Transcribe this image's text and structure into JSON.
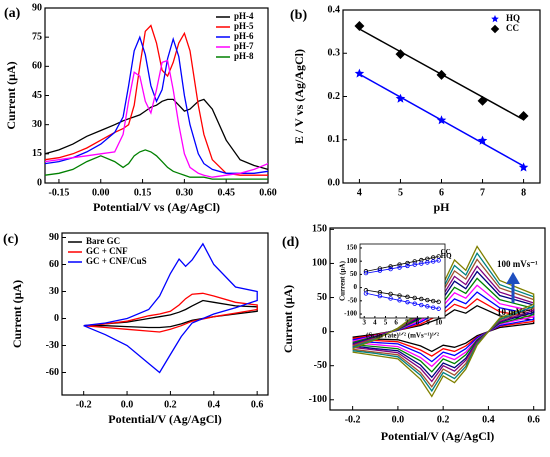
{
  "chart_data": [
    {
      "type": "line",
      "panel_label": "(a)",
      "x_label": "Potential/V vs (Ag/AgCl)",
      "y_label": "Current (µA)",
      "xlim": [
        -0.2,
        0.6
      ],
      "xticks": [
        -0.15,
        {
          "value": 0,
          "label": "0.00"
        },
        0.15,
        {
          "value": 0.3,
          "label": "0.30"
        },
        0.45,
        {
          "value": 0.6,
          "label": "0.60"
        }
      ],
      "ylim": [
        0,
        90
      ],
      "yticks": [
        0,
        15,
        30,
        45,
        60,
        75,
        90
      ],
      "legend": "upper right",
      "x": [
        -0.2,
        -0.15,
        -0.1,
        -0.05,
        0,
        0.05,
        0.08,
        0.1,
        0.12,
        0.14,
        0.16,
        0.18,
        0.2,
        0.22,
        0.24,
        0.26,
        0.28,
        0.3,
        0.32,
        0.35,
        0.37,
        0.4,
        0.45,
        0.5,
        0.55,
        0.6
      ],
      "series": [
        {
          "name": "pH-4",
          "color": "#000000",
          "values": [
            15,
            17,
            20,
            24,
            27,
            30,
            32,
            33,
            34,
            35,
            37,
            39,
            40,
            42,
            43,
            43,
            40,
            37,
            38,
            42,
            43,
            38,
            22,
            12,
            9,
            7
          ]
        },
        {
          "name": "pH-5",
          "color": "#ff0000",
          "values": [
            12,
            13,
            15,
            18,
            22,
            26,
            28,
            30,
            40,
            60,
            78,
            81,
            72,
            58,
            55,
            62,
            72,
            77,
            68,
            40,
            25,
            12,
            5,
            4,
            4,
            4
          ]
        },
        {
          "name": "pH-6",
          "color": "#0000ff",
          "values": [
            10,
            11,
            13,
            16,
            20,
            26,
            34,
            50,
            68,
            75,
            66,
            50,
            42,
            48,
            64,
            74,
            65,
            45,
            30,
            15,
            10,
            7,
            5,
            5,
            5,
            6
          ]
        },
        {
          "name": "pH-7",
          "color": "#ff00ff",
          "values": [
            11,
            12,
            13,
            14,
            15,
            16,
            25,
            42,
            57,
            55,
            42,
            36,
            48,
            62,
            63,
            48,
            30,
            15,
            8,
            5,
            4,
            3,
            4,
            5,
            7,
            10
          ]
        },
        {
          "name": "pH-8",
          "color": "#008000",
          "values": [
            4,
            5,
            7,
            11,
            14,
            11,
            8,
            10,
            14,
            16,
            17,
            16,
            14,
            11,
            8,
            6,
            5,
            4,
            3,
            3,
            3,
            2,
            2,
            2,
            2,
            2
          ]
        }
      ]
    },
    {
      "type": "scatter",
      "panel_label": "(b)",
      "x_label": "pH",
      "y_label": "E / V vs (Ag/AgCl)",
      "fit": true,
      "xlim": [
        3.6,
        8.4
      ],
      "xticks": [
        4,
        5,
        6,
        7,
        8
      ],
      "ylim": [
        0,
        0.4
      ],
      "yticks": [
        {
          "value": 0,
          "label": "0.0"
        },
        0.1,
        0.2,
        0.3,
        0.4
      ],
      "legend": "upper right",
      "x": [
        4,
        5,
        6,
        7,
        8
      ],
      "series": [
        {
          "name": "HQ",
          "color": "#0000ff",
          "marker": "star",
          "values": [
            0.253,
            0.195,
            0.145,
            0.098,
            0.036
          ]
        },
        {
          "name": "CC",
          "color": "#000000",
          "marker": "diamond",
          "values": [
            0.363,
            0.298,
            0.25,
            0.19,
            0.155
          ]
        }
      ]
    },
    {
      "type": "line",
      "panel_label": "(c)",
      "x_label": "Potential/V (Ag/AgCl)",
      "y_label": "Current (µA)",
      "xlim": [
        -0.3,
        0.65
      ],
      "xticks": [
        -0.2,
        {
          "value": 0,
          "label": "0.0"
        },
        0.2,
        0.4,
        0.6
      ],
      "ylim": [
        -85,
        95
      ],
      "yticks": [
        -60,
        -30,
        0,
        30,
        60,
        90
      ],
      "legend": "upper left",
      "x": [
        -0.2,
        -0.1,
        0,
        0.1,
        0.15,
        0.2,
        0.24,
        0.27,
        0.3,
        0.35,
        0.4,
        0.5,
        0.6,
        0.6,
        0.5,
        0.4,
        0.3,
        0.25,
        0.2,
        0.15,
        0.1,
        0,
        -0.1,
        -0.2
      ],
      "series": [
        {
          "name": "Bare GC",
          "color": "#000000",
          "values": [
            -8,
            -6,
            -4,
            0,
            2,
            4,
            7,
            10,
            14,
            20,
            18,
            14,
            13,
            8,
            5,
            2,
            -2,
            -6,
            -9,
            -10,
            -10,
            -9,
            -8,
            -8
          ]
        },
        {
          "name": "GC + CNF",
          "color": "#ff0000",
          "values": [
            -8,
            -6,
            -3,
            3,
            5,
            8,
            15,
            22,
            27,
            28,
            25,
            18,
            15,
            10,
            6,
            2,
            -3,
            -8,
            -12,
            -15,
            -14,
            -12,
            -10,
            -8
          ]
        },
        {
          "name": "GC + CNF/CuS",
          "color": "#0000ff",
          "values": [
            -8,
            -5,
            0,
            10,
            25,
            50,
            66,
            58,
            65,
            83,
            60,
            35,
            30,
            20,
            12,
            5,
            -5,
            -20,
            -40,
            -60,
            -50,
            -30,
            -18,
            -8
          ]
        }
      ]
    },
    {
      "type": "line",
      "panel_label": "(d)",
      "x_label": "Potential/V (Ag/AgCl)",
      "y_label": "Current (µA)",
      "xlim": [
        -0.3,
        0.65
      ],
      "xticks": [
        -0.2,
        {
          "value": 0,
          "label": "0.0"
        },
        0.2,
        0.4,
        0.6
      ],
      "ylim": [
        -115,
        152
      ],
      "yticks": [
        -100,
        -50,
        0,
        50,
        100,
        150
      ],
      "annotations": [
        "100 mVs⁻¹",
        "10 mVs⁻¹"
      ],
      "x": [
        -0.2,
        -0.1,
        0,
        0.1,
        0.2,
        0.25,
        0.3,
        0.35,
        0.45,
        0.6,
        0.6,
        0.45,
        0.35,
        0.3,
        0.25,
        0.2,
        0.15,
        0.1,
        0,
        -0.1,
        -0.2
      ],
      "series": [
        {
          "color": "#000000",
          "values": [
            -8,
            -4,
            2,
            9,
            21,
            32,
            27,
            38,
            23,
            17,
            12,
            6,
            -6,
            -17,
            -23,
            -20,
            -29,
            -21,
            -12,
            -11,
            -9
          ]
        },
        {
          "color": "#ff0000",
          "values": [
            -10,
            -5,
            2,
            11,
            27,
            40,
            34,
            48,
            29,
            21,
            15,
            8,
            -8,
            -21,
            -29,
            -25,
            -36,
            -27,
            -15,
            -13,
            -11
          ]
        },
        {
          "color": "#0000ff",
          "values": [
            -12,
            -6,
            2,
            14,
            32,
            48,
            41,
            58,
            35,
            25,
            18,
            9,
            -9,
            -25,
            -35,
            -30,
            -44,
            -32,
            -18,
            -16,
            -14
          ]
        },
        {
          "color": "#ff00ff",
          "values": [
            -14,
            -6,
            3,
            16,
            38,
            57,
            49,
            68,
            41,
            30,
            22,
            11,
            -11,
            -30,
            -41,
            -35,
            -51,
            -38,
            -22,
            -19,
            -16
          ]
        },
        {
          "color": "#008000",
          "values": [
            -16,
            -7,
            3,
            19,
            43,
            65,
            56,
            78,
            47,
            34,
            25,
            12,
            -12,
            -34,
            -47,
            -40,
            -59,
            -43,
            -25,
            -22,
            -19
          ]
        },
        {
          "color": "#000080",
          "values": [
            -18,
            -8,
            4,
            21,
            49,
            74,
            63,
            88,
            53,
            39,
            28,
            14,
            -14,
            -39,
            -53,
            -46,
            -67,
            -49,
            -28,
            -25,
            -21
          ]
        },
        {
          "color": "#800080",
          "values": [
            -19,
            -9,
            4,
            23,
            54,
            81,
            69,
            96,
            58,
            42,
            31,
            15,
            -15,
            -42,
            -58,
            -50,
            -73,
            -54,
            -31,
            -27,
            -23
          ]
        },
        {
          "color": "#a0522d",
          "values": [
            -21,
            -10,
            4,
            26,
            60,
            89,
            77,
            106,
            64,
            47,
            34,
            17,
            -17,
            -47,
            -64,
            -55,
            -81,
            -60,
            -34,
            -30,
            -26
          ]
        },
        {
          "color": "#008080",
          "values": [
            -23,
            -11,
            5,
            28,
            64,
            97,
            83,
            115,
            69,
            51,
            37,
            18,
            -18,
            -51,
            -69,
            -60,
            -87,
            -64,
            -37,
            -32,
            -28
          ]
        },
        {
          "color": "#808000",
          "values": [
            -25,
            -12,
            5,
            30,
            70,
            105,
            90,
            125,
            75,
            55,
            40,
            20,
            -20,
            -55,
            -75,
            -65,
            -95,
            -70,
            -40,
            -35,
            -30
          ]
        }
      ]
    },
    {
      "type": "scatter",
      "x_label": "(Scan rate)¹ᐟ² (mVs⁻¹)¹ᐟ²",
      "y_label": "Current (µA)",
      "fit": true,
      "legend": "end",
      "xlim": [
        2.6,
        10.6
      ],
      "xticks": [
        3,
        4,
        5,
        6,
        7,
        8,
        9,
        10
      ],
      "ylim": [
        -115,
        165
      ],
      "yticks": [
        -100,
        -50,
        0,
        50,
        100,
        150
      ],
      "x": [
        3.16,
        4.47,
        5.48,
        6.32,
        7.07,
        7.75,
        8.37,
        8.94,
        9.49,
        10
      ],
      "series": [
        {
          "name": "CC",
          "color": "#000000",
          "marker": "circle",
          "values": [
            62,
            72,
            80,
            87,
            93,
            99,
            104,
            109,
            114,
            118
          ]
        },
        {
          "name": "HQ",
          "color": "#0000ff",
          "marker": "circle",
          "values": [
            55,
            64,
            70,
            76,
            82,
            87,
            91,
            95,
            99,
            103
          ]
        },
        {
          "color": "#000000",
          "marker": "circle",
          "values": [
            -10,
            -18,
            -24,
            -30,
            -35,
            -39,
            -43,
            -47,
            -51,
            -54
          ]
        },
        {
          "color": "#0000ff",
          "marker": "circle",
          "values": [
            -22,
            -32,
            -41,
            -48,
            -55,
            -61,
            -66,
            -71,
            -76,
            -80
          ]
        }
      ]
    }
  ]
}
